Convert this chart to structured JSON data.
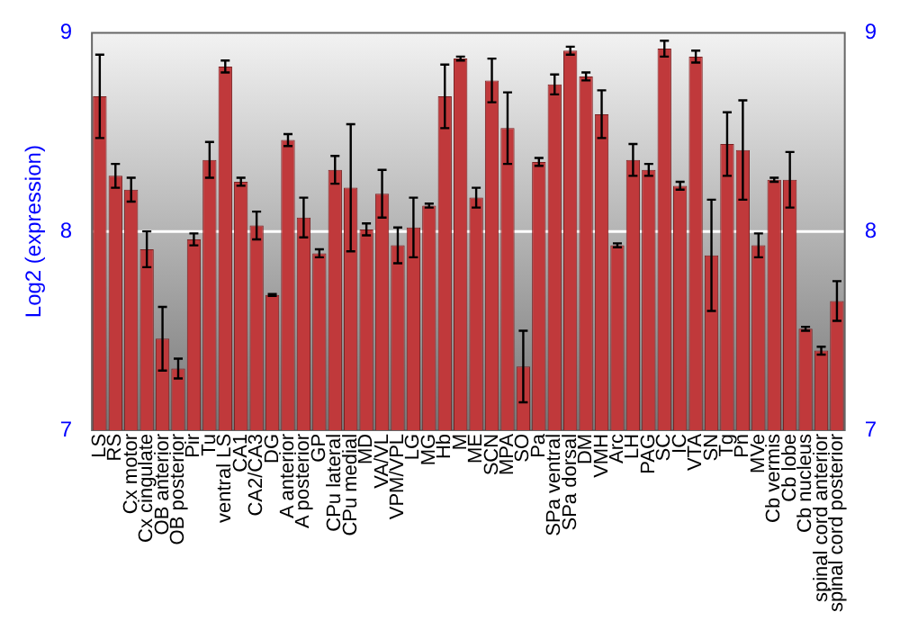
{
  "chart_data": {
    "type": "bar",
    "ylabel": "Log2 (expression)",
    "categories": [
      "LS",
      "RS",
      "Cx motor",
      "Cx cingulate",
      "OB anterior",
      "OB posterior",
      "Pir",
      "Tu",
      "ventral LS",
      "CA1",
      "CA2/CA3",
      "DG",
      "A anterior",
      "A posterior",
      "GP",
      "CPu lateral",
      "CPu medial",
      "MD",
      "VA/VL",
      "VPM/VPL",
      "LG",
      "MG",
      "Hb",
      "M",
      "ME",
      "SCN",
      "MPA",
      "SO",
      "Pa",
      "SPa ventral",
      "SPa dorsal",
      "DM",
      "VMH",
      "Arc",
      "LH",
      "PAG",
      "SC",
      "IC",
      "VTA",
      "SN",
      "Tg",
      "Pn",
      "MVe",
      "Cb vermis",
      "Cb lobe",
      "Cb nucleus",
      "spinal cord anterior",
      "spinal cord posterior"
    ],
    "values": [
      8.68,
      8.28,
      8.21,
      7.91,
      7.46,
      7.31,
      7.96,
      8.36,
      8.83,
      8.25,
      8.03,
      7.68,
      8.46,
      8.07,
      7.89,
      8.31,
      8.22,
      8.01,
      8.19,
      7.93,
      8.02,
      8.13,
      8.68,
      8.87,
      8.17,
      8.76,
      8.52,
      7.32,
      8.35,
      8.74,
      8.91,
      8.78,
      8.59,
      7.93,
      8.36,
      8.31,
      8.92,
      8.23,
      8.88,
      7.88,
      8.44,
      8.41,
      7.93,
      8.26,
      8.26,
      7.51,
      7.4,
      7.65
    ],
    "errors": [
      0.21,
      0.06,
      0.06,
      0.09,
      0.16,
      0.05,
      0.03,
      0.09,
      0.03,
      0.02,
      0.07,
      0.005,
      0.03,
      0.1,
      0.02,
      0.07,
      0.32,
      0.03,
      0.12,
      0.09,
      0.15,
      0.01,
      0.16,
      0.01,
      0.05,
      0.11,
      0.18,
      0.18,
      0.02,
      0.05,
      0.02,
      0.02,
      0.12,
      0.01,
      0.08,
      0.03,
      0.04,
      0.02,
      0.03,
      0.28,
      0.16,
      0.25,
      0.06,
      0.01,
      0.14,
      0.01,
      0.02,
      0.1
    ],
    "color": "#c0393b",
    "ylim": [
      7,
      9
    ],
    "yticks": [
      7,
      8,
      9
    ],
    "y2lim": [
      7,
      9
    ],
    "y2ticks": [
      7,
      8,
      9
    ],
    "grid": "y",
    "legend": false
  }
}
